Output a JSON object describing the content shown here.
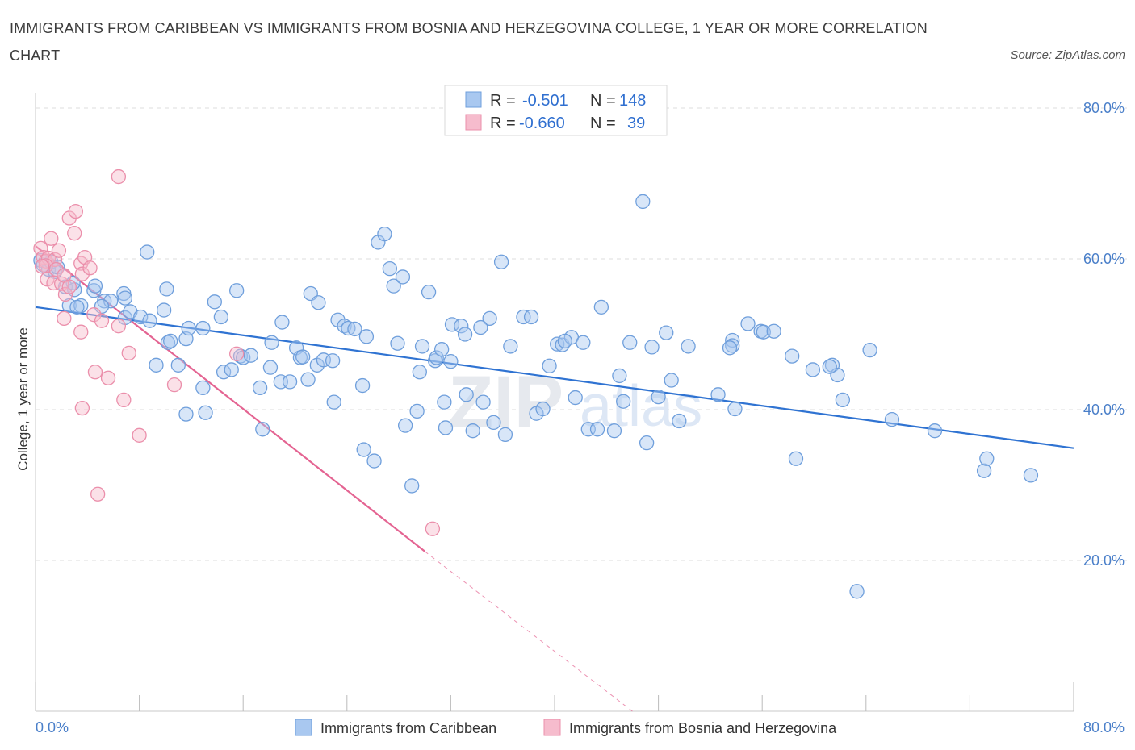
{
  "title": "IMMIGRANTS FROM CARIBBEAN VS IMMIGRANTS FROM BOSNIA AND HERZEGOVINA COLLEGE, 1 YEAR OR MORE CORRELATION CHART",
  "source": "Source: ZipAtlas.com",
  "watermark": {
    "zip": "ZIP",
    "atlas": "atlas"
  },
  "colors": {
    "blue_fill": "#a9c8f0",
    "blue_stroke": "#6f9fdc",
    "blue_line": "#2f73d2",
    "pink_fill": "#f6bccd",
    "pink_stroke": "#eb8fab",
    "pink_line": "#e46492",
    "grid": "#dcdcdc",
    "tick_text": "#4a7fc9"
  },
  "legend_top": {
    "rows": [
      {
        "r_label": "R = ",
        "r_value": "-0.501",
        "n_label": "N = ",
        "n_value": "148"
      },
      {
        "r_label": "R = ",
        "r_value": "-0.660",
        "n_label": "N = ",
        "n_value": "39"
      }
    ]
  },
  "chart_data": {
    "type": "scatter",
    "title": "IMMIGRANTS FROM CARIBBEAN VS IMMIGRANTS FROM BOSNIA AND HERZEGOVINA COLLEGE, 1 YEAR OR MORE CORRELATION CHART",
    "xlabel": "",
    "ylabel": "College, 1 year or more",
    "xlim": [
      0,
      80
    ],
    "ylim": [
      0,
      80
    ],
    "x_tick_labels": [
      "0.0%",
      "80.0%"
    ],
    "y_ticks": [
      20,
      40,
      60,
      80
    ],
    "y_tick_labels": [
      "20.0%",
      "40.0%",
      "60.0%",
      "80.0%"
    ],
    "grid": true,
    "legend_position": "bottom",
    "series": [
      {
        "name": "Immigrants from Caribbean",
        "color": "#a9c8f0",
        "trend": {
          "x": [
            0,
            80
          ],
          "y": [
            53.6,
            34.9
          ],
          "dashed_to": null
        },
        "points": [
          [
            0.4,
            59.8
          ],
          [
            0.6,
            59.2
          ],
          [
            1.0,
            58.6
          ],
          [
            1.2,
            59.6
          ],
          [
            1.5,
            58.3
          ],
          [
            1.7,
            58.9
          ],
          [
            2.3,
            56.3
          ],
          [
            2.6,
            53.8
          ],
          [
            3.0,
            55.9
          ],
          [
            3.5,
            53.8
          ],
          [
            4.5,
            55.8
          ],
          [
            4.6,
            56.4
          ],
          [
            5.3,
            54.4
          ],
          [
            5.8,
            54.4
          ],
          [
            6.8,
            55.4
          ],
          [
            6.9,
            52.2
          ],
          [
            8.6,
            60.9
          ],
          [
            6.9,
            54.8
          ],
          [
            7.3,
            53.0
          ],
          [
            8.1,
            52.3
          ],
          [
            8.8,
            51.8
          ],
          [
            9.9,
            53.2
          ],
          [
            10.1,
            56.0
          ],
          [
            10.2,
            48.9
          ],
          [
            10.4,
            49.1
          ],
          [
            11.6,
            49.4
          ],
          [
            11.8,
            50.8
          ],
          [
            11.0,
            45.9
          ],
          [
            12.9,
            50.8
          ],
          [
            13.8,
            54.3
          ],
          [
            14.3,
            52.3
          ],
          [
            15.5,
            55.8
          ],
          [
            15.8,
            47.1
          ],
          [
            16.0,
            46.9
          ],
          [
            16.6,
            47.2
          ],
          [
            18.1,
            45.6
          ],
          [
            18.2,
            48.9
          ],
          [
            17.3,
            42.9
          ],
          [
            18.9,
            43.7
          ],
          [
            19.0,
            51.6
          ],
          [
            20.1,
            48.2
          ],
          [
            20.4,
            46.9
          ],
          [
            20.6,
            47.0
          ],
          [
            21.2,
            55.4
          ],
          [
            21.8,
            54.2
          ],
          [
            21.7,
            45.9
          ],
          [
            22.2,
            46.6
          ],
          [
            23.0,
            41.0
          ],
          [
            23.3,
            51.9
          ],
          [
            23.8,
            51.1
          ],
          [
            24.1,
            50.8
          ],
          [
            24.6,
            50.7
          ],
          [
            25.5,
            49.7
          ],
          [
            25.2,
            43.2
          ],
          [
            25.3,
            34.7
          ],
          [
            26.1,
            33.2
          ],
          [
            26.4,
            62.2
          ],
          [
            26.9,
            63.3
          ],
          [
            27.3,
            58.7
          ],
          [
            27.6,
            56.4
          ],
          [
            28.3,
            57.6
          ],
          [
            28.5,
            37.9
          ],
          [
            29.0,
            29.9
          ],
          [
            29.4,
            39.8
          ],
          [
            29.6,
            45.0
          ],
          [
            29.8,
            48.4
          ],
          [
            30.3,
            55.6
          ],
          [
            30.8,
            46.5
          ],
          [
            30.9,
            46.9
          ],
          [
            31.3,
            48.0
          ],
          [
            31.5,
            41.0
          ],
          [
            31.6,
            37.6
          ],
          [
            32.1,
            51.3
          ],
          [
            32.8,
            51.1
          ],
          [
            33.1,
            50.0
          ],
          [
            33.2,
            42.0
          ],
          [
            33.7,
            37.2
          ],
          [
            34.5,
            41.0
          ],
          [
            35.0,
            52.1
          ],
          [
            35.3,
            38.3
          ],
          [
            35.9,
            59.6
          ],
          [
            36.2,
            36.7
          ],
          [
            36.6,
            48.4
          ],
          [
            37.6,
            52.3
          ],
          [
            38.2,
            52.3
          ],
          [
            38.6,
            39.5
          ],
          [
            39.1,
            40.1
          ],
          [
            39.6,
            45.8
          ],
          [
            40.2,
            48.7
          ],
          [
            40.6,
            48.6
          ],
          [
            41.3,
            49.6
          ],
          [
            41.6,
            41.6
          ],
          [
            42.2,
            48.9
          ],
          [
            42.6,
            37.4
          ],
          [
            43.3,
            37.4
          ],
          [
            43.6,
            53.6
          ],
          [
            44.6,
            37.2
          ],
          [
            45.0,
            44.5
          ],
          [
            45.3,
            41.1
          ],
          [
            45.8,
            48.9
          ],
          [
            46.8,
            67.6
          ],
          [
            47.1,
            35.6
          ],
          [
            47.5,
            48.3
          ],
          [
            48.6,
            50.2
          ],
          [
            49.0,
            43.9
          ],
          [
            49.6,
            38.5
          ],
          [
            50.3,
            48.4
          ],
          [
            52.6,
            42.0
          ],
          [
            53.7,
            49.2
          ],
          [
            53.7,
            48.5
          ],
          [
            53.9,
            40.1
          ],
          [
            54.9,
            51.4
          ],
          [
            55.9,
            50.4
          ],
          [
            56.1,
            50.3
          ],
          [
            56.9,
            50.4
          ],
          [
            58.3,
            47.1
          ],
          [
            58.6,
            33.5
          ],
          [
            59.9,
            45.3
          ],
          [
            61.4,
            45.9
          ],
          [
            61.8,
            44.6
          ],
          [
            62.2,
            41.3
          ],
          [
            63.3,
            15.9
          ],
          [
            64.3,
            47.9
          ],
          [
            61.2,
            45.7
          ],
          [
            66.0,
            38.7
          ],
          [
            69.3,
            37.2
          ],
          [
            73.1,
            31.9
          ],
          [
            73.3,
            33.5
          ],
          [
            76.7,
            31.3
          ],
          [
            3.2,
            53.6
          ],
          [
            2.9,
            56.8
          ],
          [
            12.9,
            42.9
          ],
          [
            14.5,
            45.0
          ],
          [
            17.5,
            37.4
          ],
          [
            19.6,
            43.7
          ],
          [
            9.3,
            45.9
          ],
          [
            11.6,
            39.4
          ],
          [
            13.1,
            39.6
          ],
          [
            15.1,
            45.3
          ],
          [
            5.1,
            53.7
          ],
          [
            40.8,
            49.1
          ],
          [
            32.0,
            46.4
          ],
          [
            27.9,
            48.8
          ],
          [
            22.9,
            46.5
          ],
          [
            21.0,
            44.0
          ],
          [
            34.3,
            50.9
          ],
          [
            48.0,
            41.7
          ],
          [
            53.5,
            48.2
          ]
        ]
      },
      {
        "name": "Immigrants from Bosnia and Herzegovina",
        "color": "#f6bccd",
        "trend": {
          "x": [
            0,
            30
          ],
          "y": [
            61.7,
            21.2
          ],
          "dashed_to": [
            46,
            0
          ]
        },
        "points": [
          [
            0.4,
            61.4
          ],
          [
            0.6,
            60.2
          ],
          [
            0.8,
            59.7
          ],
          [
            1.0,
            60.1
          ],
          [
            1.2,
            62.7
          ],
          [
            1.5,
            59.9
          ],
          [
            1.8,
            61.1
          ],
          [
            0.9,
            57.3
          ],
          [
            1.4,
            56.8
          ],
          [
            2.0,
            56.7
          ],
          [
            2.3,
            55.3
          ],
          [
            2.6,
            65.4
          ],
          [
            3.1,
            66.3
          ],
          [
            3.0,
            63.4
          ],
          [
            3.5,
            59.4
          ],
          [
            3.6,
            58.0
          ],
          [
            3.8,
            60.2
          ],
          [
            4.2,
            58.8
          ],
          [
            2.2,
            52.1
          ],
          [
            3.5,
            50.3
          ],
          [
            4.5,
            52.6
          ],
          [
            5.1,
            51.8
          ],
          [
            6.4,
            51.1
          ],
          [
            6.4,
            70.9
          ],
          [
            4.6,
            45.0
          ],
          [
            5.6,
            44.2
          ],
          [
            6.8,
            41.3
          ],
          [
            3.6,
            40.2
          ],
          [
            7.2,
            47.5
          ],
          [
            8.0,
            36.6
          ],
          [
            4.8,
            28.8
          ],
          [
            10.7,
            43.3
          ],
          [
            15.5,
            47.4
          ],
          [
            30.6,
            24.2
          ],
          [
            0.8,
            59.1
          ],
          [
            1.6,
            58.6
          ],
          [
            2.2,
            57.8
          ],
          [
            2.6,
            56.3
          ],
          [
            0.5,
            59.0
          ]
        ]
      }
    ]
  }
}
